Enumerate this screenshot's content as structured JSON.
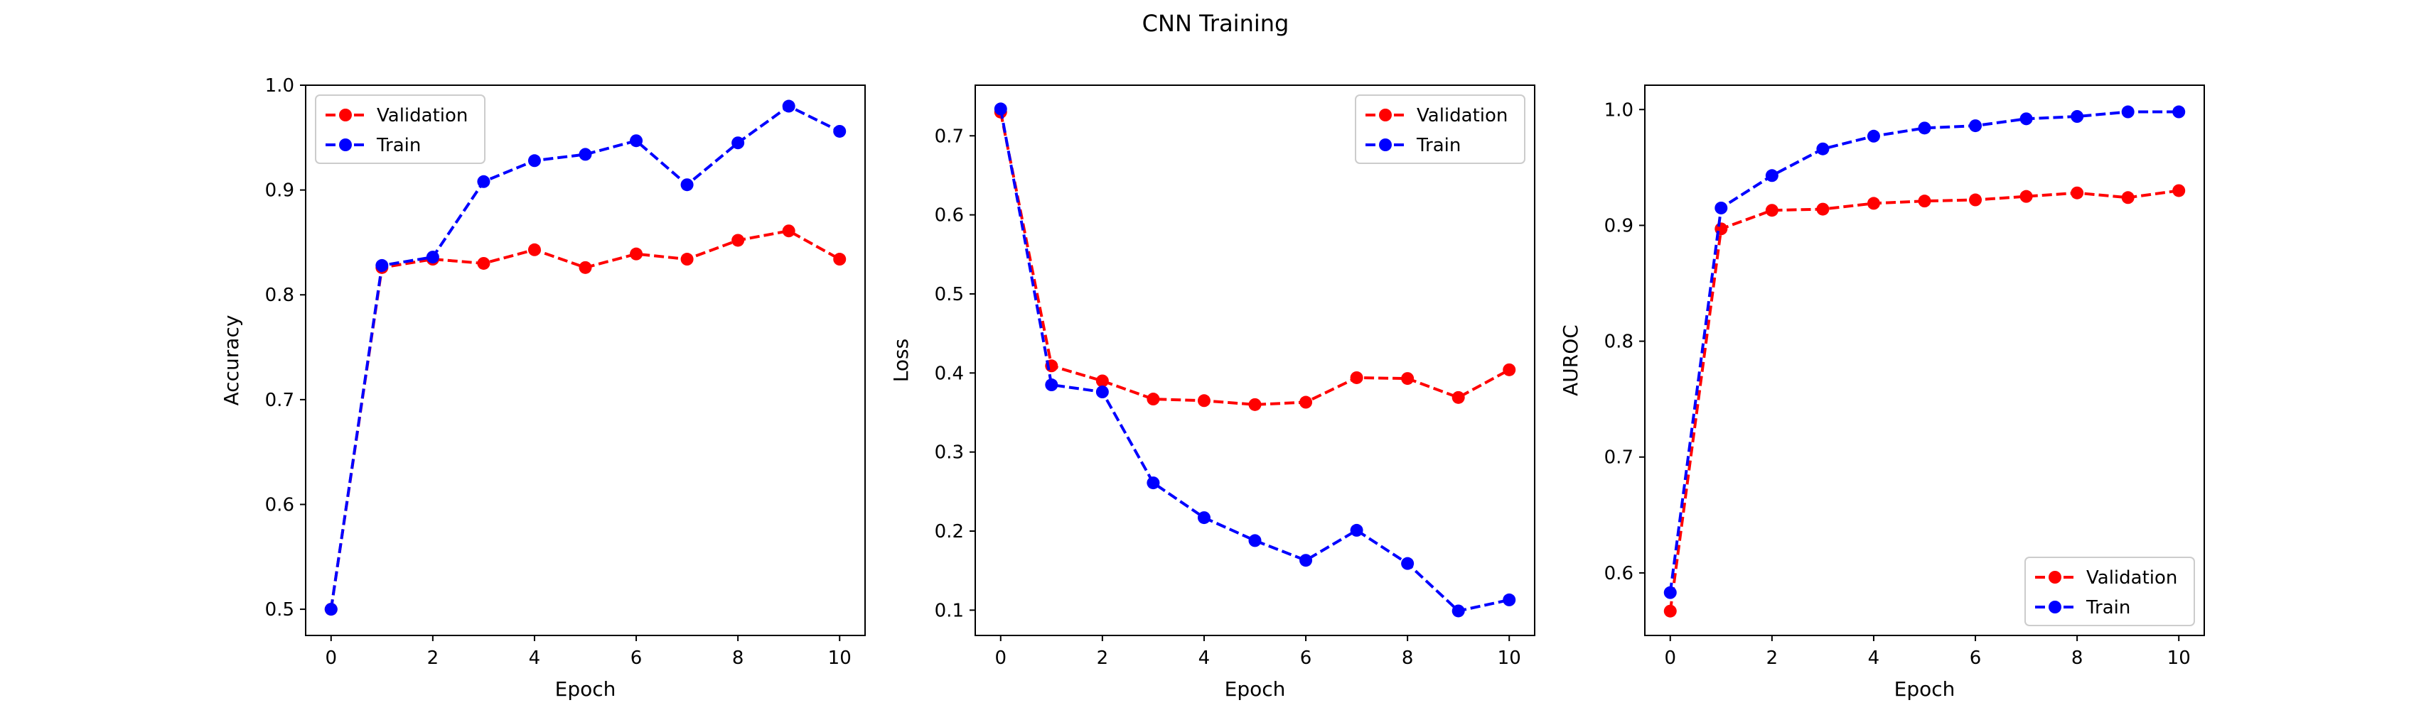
{
  "figure": {
    "title": "CNN Training"
  },
  "chart_data": [
    {
      "type": "line",
      "title": "",
      "xlabel": "Epoch",
      "ylabel": "Accuracy",
      "x": [
        0,
        1,
        2,
        3,
        4,
        5,
        6,
        7,
        8,
        9,
        10
      ],
      "xlim": [
        -0.5,
        10.5
      ],
      "ylim": [
        0.475,
        1.0
      ],
      "xticks": [
        0,
        2,
        4,
        6,
        8,
        10
      ],
      "yticks": [
        0.5,
        0.6,
        0.7,
        0.8,
        0.9,
        1.0
      ],
      "ytick_labels": [
        "0.5",
        "0.6",
        "0.7",
        "0.8",
        "0.9",
        "1.0"
      ],
      "grid": false,
      "legend_position": "top-left",
      "series": [
        {
          "name": "Validation",
          "color": "#ff0000",
          "linestyle": "dashed",
          "marker": "circle",
          "values": [
            0.5,
            0.826,
            0.834,
            0.83,
            0.843,
            0.826,
            0.839,
            0.834,
            0.852,
            0.861,
            0.834
          ]
        },
        {
          "name": "Train",
          "color": "#0000ff",
          "linestyle": "dashed",
          "marker": "circle",
          "values": [
            0.5,
            0.828,
            0.836,
            0.908,
            0.928,
            0.934,
            0.947,
            0.905,
            0.945,
            0.98,
            0.956
          ]
        }
      ]
    },
    {
      "type": "line",
      "title": "",
      "xlabel": "Epoch",
      "ylabel": "Loss",
      "x": [
        0,
        1,
        2,
        3,
        4,
        5,
        6,
        7,
        8,
        9,
        10
      ],
      "xlim": [
        -0.5,
        10.5
      ],
      "ylim": [
        0.068,
        0.764
      ],
      "xticks": [
        0,
        2,
        4,
        6,
        8,
        10
      ],
      "yticks": [
        0.1,
        0.2,
        0.3,
        0.4,
        0.5,
        0.6,
        0.7
      ],
      "ytick_labels": [
        "0.1",
        "0.2",
        "0.3",
        "0.4",
        "0.5",
        "0.6",
        "0.7"
      ],
      "grid": false,
      "legend_position": "top-right",
      "series": [
        {
          "name": "Validation",
          "color": "#ff0000",
          "linestyle": "dashed",
          "marker": "circle",
          "values": [
            0.73,
            0.409,
            0.39,
            0.367,
            0.365,
            0.36,
            0.363,
            0.394,
            0.393,
            0.369,
            0.404
          ]
        },
        {
          "name": "Train",
          "color": "#0000ff",
          "linestyle": "dashed",
          "marker": "circle",
          "values": [
            0.734,
            0.385,
            0.376,
            0.261,
            0.217,
            0.188,
            0.163,
            0.201,
            0.159,
            0.099,
            0.113
          ]
        }
      ]
    },
    {
      "type": "line",
      "title": "",
      "xlabel": "Epoch",
      "ylabel": "AUROC",
      "x": [
        0,
        1,
        2,
        3,
        4,
        5,
        6,
        7,
        8,
        9,
        10
      ],
      "xlim": [
        -0.5,
        10.5
      ],
      "ylim": [
        0.546,
        1.021
      ],
      "xticks": [
        0,
        2,
        4,
        6,
        8,
        10
      ],
      "yticks": [
        0.6,
        0.7,
        0.8,
        0.9,
        1.0
      ],
      "ytick_labels": [
        "0.6",
        "0.7",
        "0.8",
        "0.9",
        "1.0"
      ],
      "grid": false,
      "legend_position": "bottom-right",
      "series": [
        {
          "name": "Validation",
          "color": "#ff0000",
          "linestyle": "dashed",
          "marker": "circle",
          "values": [
            0.567,
            0.897,
            0.913,
            0.914,
            0.919,
            0.921,
            0.922,
            0.925,
            0.928,
            0.924,
            0.93
          ]
        },
        {
          "name": "Train",
          "color": "#0000ff",
          "linestyle": "dashed",
          "marker": "circle",
          "values": [
            0.583,
            0.915,
            0.943,
            0.966,
            0.977,
            0.984,
            0.986,
            0.992,
            0.994,
            0.998,
            0.998
          ]
        }
      ]
    }
  ]
}
